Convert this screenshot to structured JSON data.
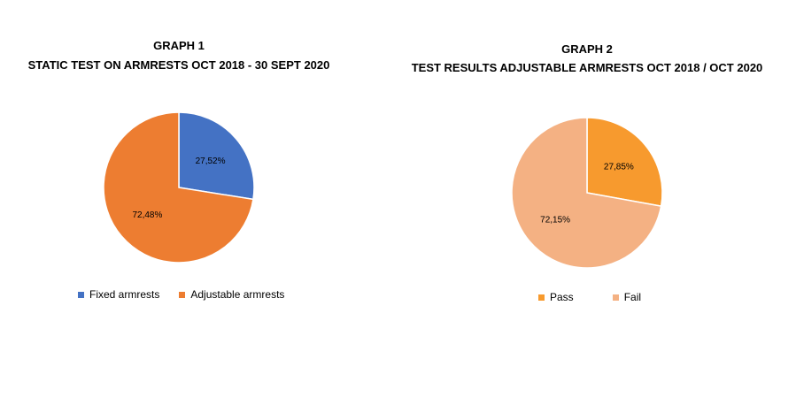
{
  "chart_data": [
    {
      "type": "pie",
      "title": "GRAPH 1",
      "subtitle": "STATIC TEST ON ARMRESTS OCT 2018 - 30 SEPT 2020",
      "legend_placement": "bottom",
      "slices": [
        {
          "name": "Fixed armrests",
          "value": 27.52,
          "label": "27,52%",
          "color": "#4472C4"
        },
        {
          "name": "Adjustable armrests",
          "value": 72.48,
          "label": "72,48%",
          "color": "#ED7D31"
        }
      ]
    },
    {
      "type": "pie",
      "title": "GRAPH 2",
      "subtitle": "TEST RESULTS ADJUSTABLE ARMRESTS OCT 2018 / OCT 2020",
      "legend_placement": "bottom",
      "slices": [
        {
          "name": "Pass",
          "value": 27.85,
          "label": "27,85%",
          "color": "#F79A2E"
        },
        {
          "name": "Fail",
          "value": 72.15,
          "label": "72,15%",
          "color": "#F4B183"
        }
      ]
    }
  ]
}
